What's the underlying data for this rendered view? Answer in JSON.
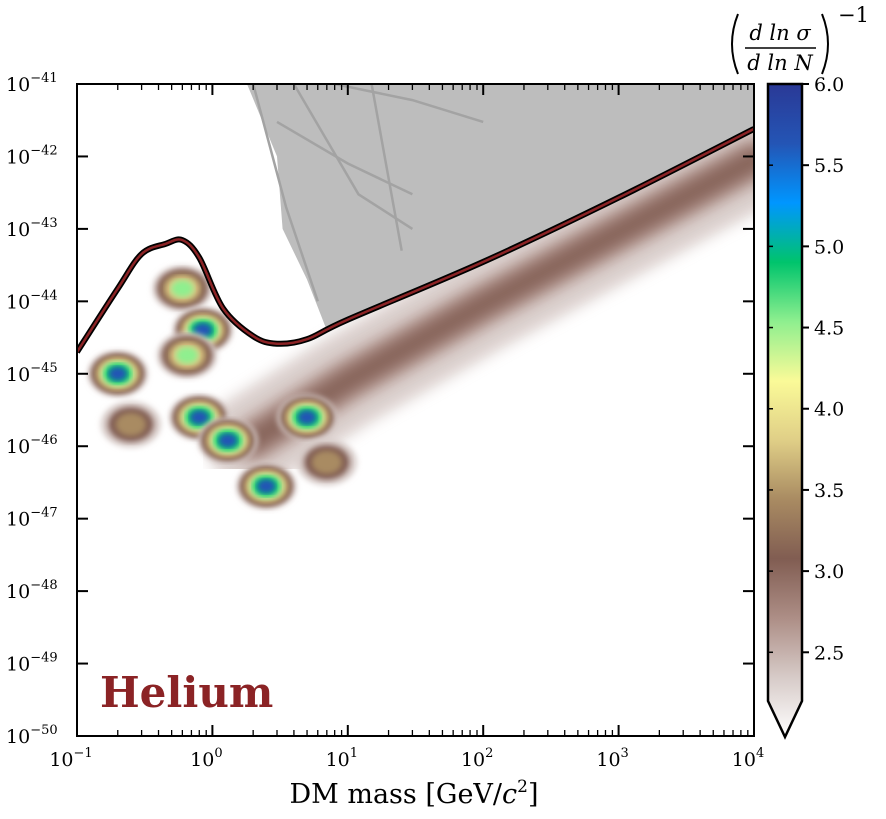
{
  "chart_data": {
    "type": "heatmap",
    "title": "",
    "xlabel": "DM mass [GeV/c²]",
    "xlabel_main": "DM mass [GeV/",
    "xlabel_c": "c",
    "xlabel_sup": "2",
    "xlabel_end": "]",
    "ylabel": "",
    "xscale": "log",
    "yscale": "log",
    "xlim": [
      0.1,
      10000
    ],
    "ylim": [
      1e-50,
      1e-41
    ],
    "x_ticks": [
      {
        "value": 0.1,
        "base": "10",
        "exp": "−1"
      },
      {
        "value": 1,
        "base": "10",
        "exp": "0"
      },
      {
        "value": 10,
        "base": "10",
        "exp": "1"
      },
      {
        "value": 100,
        "base": "10",
        "exp": "2"
      },
      {
        "value": 1000,
        "base": "10",
        "exp": "3"
      },
      {
        "value": 10000,
        "base": "10",
        "exp": "4"
      }
    ],
    "y_ticks": [
      {
        "value": 1e-41,
        "base": "10",
        "exp": "−41"
      },
      {
        "value": 1e-42,
        "base": "10",
        "exp": "−42"
      },
      {
        "value": 1e-43,
        "base": "10",
        "exp": "−43"
      },
      {
        "value": 1e-44,
        "base": "10",
        "exp": "−44"
      },
      {
        "value": 1e-45,
        "base": "10",
        "exp": "−45"
      },
      {
        "value": 1e-46,
        "base": "10",
        "exp": "−46"
      },
      {
        "value": 1e-47,
        "base": "10",
        "exp": "−47"
      },
      {
        "value": 1e-48,
        "base": "10",
        "exp": "−48"
      },
      {
        "value": 1e-49,
        "base": "10",
        "exp": "−49"
      },
      {
        "value": 1e-50,
        "base": "10",
        "exp": "−50"
      }
    ],
    "annotation": "Helium",
    "limit_curve": {
      "color": "#8b2325",
      "points": [
        [
          0.1,
          2e-45
        ],
        [
          0.2,
          1.5e-44
        ],
        [
          0.3,
          4.5e-44
        ],
        [
          0.45,
          6.2e-44
        ],
        [
          0.6,
          7e-44
        ],
        [
          0.8,
          4e-44
        ],
        [
          1.2,
          8e-45
        ],
        [
          2,
          3.3e-45
        ],
        [
          3,
          2.6e-45
        ],
        [
          5,
          3e-45
        ],
        [
          10,
          5.6e-45
        ],
        [
          100,
          3.5e-44
        ],
        [
          1000,
          2.7e-43
        ],
        [
          10000,
          2.4e-42
        ]
      ]
    },
    "excluded_region": {
      "color": "#bdbdbd",
      "points": [
        [
          1.8,
          1e-41
        ],
        [
          3,
          1e-42
        ],
        [
          3.3,
          1e-43
        ],
        [
          5,
          2e-44
        ],
        [
          7,
          4e-45
        ],
        [
          10,
          5.6e-45
        ],
        [
          100,
          3.5e-44
        ],
        [
          1000,
          2.7e-43
        ],
        [
          10000,
          2.4e-42
        ],
        [
          10000,
          1e-41
        ]
      ]
    },
    "colorbar": {
      "label": "(d ln σ / d ln N)^−1",
      "range": [
        2.2,
        6.0
      ],
      "ticks": [
        "6.0",
        "5.5",
        "5.0",
        "4.5",
        "4.0",
        "3.5",
        "3.0",
        "2.5"
      ],
      "tick_values": [
        6.0,
        5.5,
        5.0,
        4.5,
        4.0,
        3.5,
        3.0,
        2.5
      ],
      "colormap": [
        "#ffffff",
        "#d7cbc8",
        "#ad8e86",
        "#815d52",
        "#a98b62",
        "#e0cf87",
        "#fafa98",
        "#8fef8f",
        "#00c46c",
        "#0096ff",
        "#2455b5",
        "#2a3996"
      ],
      "extend": "min"
    },
    "band": {
      "description_levels": [
        2.4,
        2.7,
        3.0,
        3.3
      ],
      "center": [
        [
          2,
          1.2e-46
        ],
        [
          10,
          8e-46
        ],
        [
          100,
          9e-45
        ],
        [
          1000,
          9e-44
        ],
        [
          10000,
          9e-43
        ]
      ]
    },
    "hotspots": [
      {
        "x": 0.2,
        "y": 1e-45,
        "value": 6.0
      },
      {
        "x": 0.6,
        "y": 1.5e-44,
        "value": 4.6
      },
      {
        "x": 0.85,
        "y": 4e-45,
        "value": 5.8
      },
      {
        "x": 0.65,
        "y": 1.8e-45,
        "value": 4.8
      },
      {
        "x": 0.8,
        "y": 2.5e-46,
        "value": 5.6
      },
      {
        "x": 1.3,
        "y": 1.2e-46,
        "value": 5.9
      },
      {
        "x": 2.5,
        "y": 2.8e-47,
        "value": 5.8
      },
      {
        "x": 5,
        "y": 2.5e-46,
        "value": 5.9
      },
      {
        "x": 7,
        "y": 6e-47,
        "value": 4.0
      },
      {
        "x": 0.25,
        "y": 2e-46,
        "value": 3.8
      }
    ]
  }
}
